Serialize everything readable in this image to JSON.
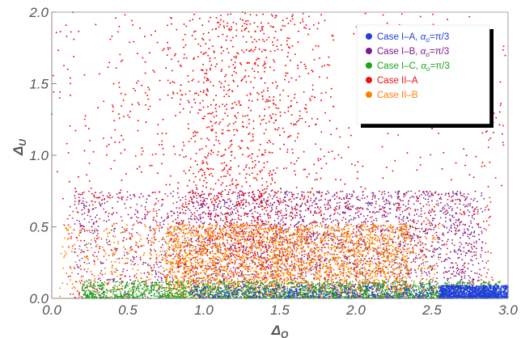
{
  "chart_data": {
    "type": "scatter",
    "xlabel": "Δ",
    "xlabel_sub": "O",
    "ylabel": "Δ",
    "ylabel_sub": "U",
    "xlim": [
      0.0,
      3.0
    ],
    "ylim": [
      0.0,
      2.0
    ],
    "x_ticks": [
      "0.0",
      "0.5",
      "1.0",
      "1.5",
      "2.0",
      "2.5",
      "3.0"
    ],
    "y_ticks": [
      "0.0",
      "0.5",
      "1.0",
      "1.5",
      "2.0"
    ],
    "legend_position": "top-right",
    "series": [
      {
        "name_parts": [
          "Case I–A, ",
          "α",
          "o",
          "=π/3"
        ],
        "color": "#1f3fe0",
        "x_range": [
          0.9,
          3.0
        ],
        "y_range": [
          0.0,
          0.1
        ],
        "density": "dense band concentrated near x = 2.6–3.0, y = 0–0.08"
      },
      {
        "name_parts": [
          "Case I–B, ",
          "α",
          "o",
          "=π/3"
        ],
        "color": "#7a1a8e",
        "x_range": [
          0.15,
          2.85
        ],
        "y_range": [
          0.0,
          0.75
        ],
        "density": "uniform band, upper edge at y ≈ 0.75"
      },
      {
        "name_parts": [
          "Case I–C, ",
          "α",
          "o",
          "=π/3"
        ],
        "color": "#1aa51a",
        "x_range": [
          0.2,
          2.95
        ],
        "y_range": [
          0.0,
          0.12
        ],
        "density": "thin band along the x axis"
      },
      {
        "name_parts": [
          "Case II–A"
        ],
        "color": "#ee1111",
        "x_range": [
          0.0,
          3.0
        ],
        "y_range": [
          0.0,
          2.0
        ],
        "density": "peaked near x ≈ 1.25, extends to y = 2.0"
      },
      {
        "name_parts": [
          "Case II–B"
        ],
        "color": "#ff8000",
        "x_range": [
          0.05,
          2.55
        ],
        "y_range": [
          0.0,
          0.52
        ],
        "density": "dense between x = 0.7 and x = 2.3, upper edge at y ≈ 0.52"
      }
    ]
  }
}
